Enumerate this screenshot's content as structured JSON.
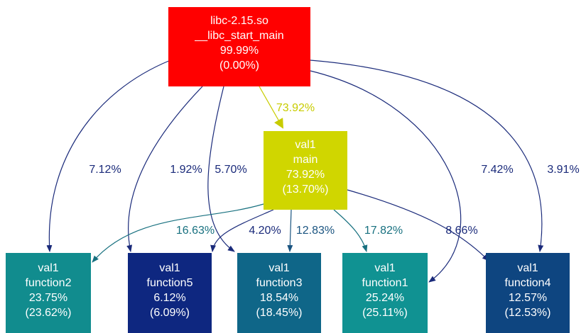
{
  "nodes": [
    {
      "lines": [
        "libc-2.15.so",
        "__libc_start_main",
        "99.99%",
        "(0.00%)"
      ]
    },
    {
      "lines": [
        "val1",
        "main",
        "73.92%",
        "(13.70%)"
      ]
    },
    {
      "lines": [
        "val1",
        "function2",
        "23.75%",
        "(23.62%)"
      ]
    },
    {
      "lines": [
        "val1",
        "function5",
        "6.12%",
        "(6.09%)"
      ]
    },
    {
      "lines": [
        "val1",
        "function3",
        "18.54%",
        "(18.45%)"
      ]
    },
    {
      "lines": [
        "val1",
        "function1",
        "25.24%",
        "(25.11%)"
      ]
    },
    {
      "lines": [
        "val1",
        "function4",
        "12.57%",
        "(12.53%)"
      ]
    }
  ],
  "edges": [
    {
      "label": "73.92%"
    },
    {
      "label": "7.12%"
    },
    {
      "label": "1.92%"
    },
    {
      "label": "5.70%"
    },
    {
      "label": "7.42%"
    },
    {
      "label": "3.91%"
    },
    {
      "label": "16.63%"
    },
    {
      "label": "4.20%"
    },
    {
      "label": "12.83%"
    },
    {
      "label": "17.82%"
    },
    {
      "label": "8.66%"
    }
  ]
}
